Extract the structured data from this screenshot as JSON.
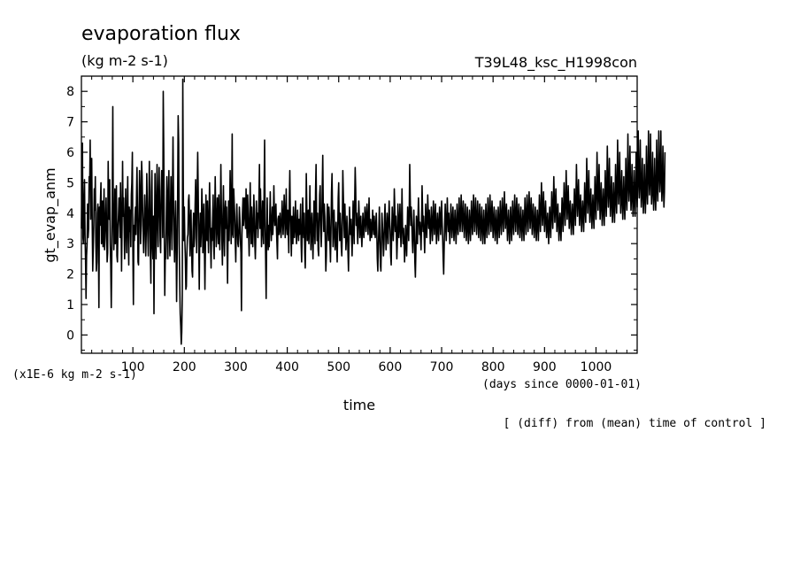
{
  "chart_data": {
    "type": "line",
    "title": "evaporation flux",
    "subtitle": "(kg m-2 s-1)",
    "run_label": "T39L48_ksc_H1998con",
    "ylabel": "gt_evap_anm",
    "xlabel": "time",
    "y_unit_note": "(x1E-6 kg m-2 s-1)",
    "x_unit_note": "(days since 0000-01-01)",
    "footnote": "[ (diff) from (mean) time of control ]",
    "xlim": [
      0,
      1080
    ],
    "ylim": [
      -0.6,
      8.5
    ],
    "x_ticks": [
      100,
      200,
      300,
      400,
      500,
      600,
      700,
      800,
      900,
      1000
    ],
    "x_tick_labels": [
      "100",
      "200",
      "300",
      "400",
      "500",
      "600",
      "700",
      "800",
      "900",
      "1000"
    ],
    "y_ticks": [
      0,
      1,
      2,
      3,
      4,
      5,
      6,
      7,
      8
    ],
    "y_tick_labels": [
      "0",
      "1",
      "2",
      "3",
      "4",
      "5",
      "6",
      "7",
      "8"
    ],
    "grid": false,
    "line_color": "#000000",
    "series": [
      {
        "x_start": 0,
        "x_step": 1,
        "values": [
          3.5,
          5.0,
          6.3,
          3.2,
          3.0,
          4.4,
          5.1,
          3.3,
          2.5,
          1.2,
          2.6,
          3.0,
          4.3,
          3.2,
          3.5,
          5.2,
          4.8,
          6.4,
          3.8,
          4.9,
          5.8,
          3.7,
          2.1,
          2.8,
          3.6,
          4.8,
          4.1,
          5.2,
          3.1,
          2.1,
          2.4,
          4.0,
          4.3,
          3.1,
          0.9,
          4.2,
          3.6,
          4.4,
          5.0,
          3.0,
          3.4,
          4.4,
          2.9,
          3.7,
          4.8,
          2.8,
          3.2,
          3.9,
          4.5,
          3.5,
          2.4,
          2.7,
          5.7,
          4.0,
          3.8,
          5.1,
          3.0,
          2.3,
          0.9,
          2.5,
          4.6,
          7.5,
          3.9,
          2.8,
          3.4,
          4.8,
          3.0,
          3.4,
          4.9,
          2.6,
          2.4,
          3.5,
          3.9,
          4.5,
          4.2,
          3.2,
          5.0,
          3.9,
          2.1,
          3.6,
          5.7,
          3.9,
          4.5,
          3.6,
          2.5,
          3.5,
          4.8,
          3.6,
          2.7,
          4.1,
          5.2,
          3.4,
          2.3,
          4.2,
          3.4,
          4.1,
          2.9,
          4.6,
          5.0,
          6.0,
          2.8,
          1.0,
          3.6,
          3.1,
          3.8,
          4.2,
          3.3,
          4.5,
          5.5,
          4.0,
          2.4,
          2.3,
          4.0,
          5.4,
          4.8,
          3.0,
          3.6,
          5.7,
          5.2,
          4.1,
          3.3,
          2.7,
          3.6,
          4.6,
          3.9,
          2.6,
          3.4,
          5.3,
          4.2,
          3.3,
          2.6,
          4.3,
          5.7,
          4.1,
          2.7,
          1.7,
          4.7,
          5.4,
          2.9,
          2.5,
          3.9,
          0.7,
          3.3,
          5.3,
          3.6,
          2.5,
          4.4,
          5.6,
          3.7,
          2.9,
          4.6,
          5.5,
          4.3,
          3.1,
          2.7,
          4.7,
          5.4,
          5.1,
          3.2,
          8.0,
          6.1,
          3.4,
          1.3,
          2.6,
          2.5,
          3.8,
          5.2,
          4.0,
          2.5,
          4.6,
          5.4,
          3.4,
          2.6,
          4.0,
          5.2,
          3.9,
          2.8,
          4.7,
          6.5,
          4.5,
          3.3,
          2.4,
          3.5,
          4.4,
          3.0,
          1.1,
          2.6,
          4.5,
          7.2,
          6.3,
          3.0,
          1.8,
          0.7,
          0.3,
          -0.3,
          0.1,
          1.3,
          8.4,
          4.8,
          3.1,
          4.2,
          3.1,
          2.5,
          1.5,
          1.6,
          2.7,
          3.2,
          3.3,
          4.4,
          4.6,
          3.9,
          2.6,
          3.5,
          4.1,
          2.9,
          2.1,
          1.9,
          3.4,
          4.0,
          2.9,
          3.2,
          4.3,
          5.1,
          3.8,
          2.7,
          4.6,
          6.0,
          4.7,
          3.1,
          1.5,
          3.3,
          4.0,
          2.9,
          3.5,
          4.8,
          4.1,
          2.7,
          3.6,
          4.3,
          2.8,
          1.5,
          2.9,
          4.6,
          3.6,
          3.1,
          4.4,
          3.5,
          2.7,
          3.9,
          5.0,
          4.1,
          3.0,
          2.2,
          3.5,
          3.1,
          3.8,
          4.6,
          3.0,
          2.5,
          3.9,
          5.2,
          4.0,
          2.9,
          3.4,
          4.5,
          3.8,
          3.0,
          4.6,
          3.5,
          2.8,
          4.0,
          5.6,
          4.2,
          3.1,
          2.3,
          3.8,
          4.9,
          3.3,
          2.6,
          4.1,
          4.4,
          3.5,
          4.2,
          2.9,
          1.7,
          3.3,
          4.4,
          3.1,
          4.0,
          5.4,
          4.2,
          3.0,
          4.5,
          6.6,
          3.3,
          3.2,
          4.8,
          4.3,
          3.9,
          3.0,
          2.4,
          3.5,
          4.3,
          3.6,
          3.0,
          2.9,
          3.4,
          4.2,
          3.8,
          3.1,
          2.7,
          0.8,
          3.3,
          4.0,
          4.5,
          3.6,
          4.1,
          4.5,
          3.9,
          3.5,
          4.8,
          3.8,
          3.2,
          4.6,
          4.0,
          3.3,
          2.6,
          3.8,
          5.0,
          3.7,
          3.0,
          4.2,
          3.5,
          2.9,
          3.5,
          4.6,
          4.1,
          3.0,
          2.5,
          3.3,
          4.4,
          3.5,
          4.0,
          3.2,
          3.8,
          4.5,
          5.6,
          3.5,
          4.8,
          4.0,
          2.9,
          3.4,
          4.4,
          3.6,
          3.0,
          4.7,
          6.4,
          3.8,
          2.5,
          1.2,
          3.1,
          4.5,
          3.4,
          2.8,
          3.6,
          2.9,
          3.9,
          4.7,
          3.6,
          3.1,
          3.7,
          4.2,
          3.3,
          3.8,
          4.9,
          4.0,
          3.6,
          4.1,
          4.3,
          3.5,
          3.0,
          2.5,
          3.8,
          3.9,
          3.3,
          3.5,
          4.0,
          3.5,
          3.2,
          3.7,
          4.4,
          3.9,
          3.3,
          3.8,
          4.6,
          4.1,
          3.2,
          3.6,
          4.8,
          3.7,
          3.3,
          4.1,
          3.4,
          2.7,
          4.4,
          5.4,
          4.0,
          3.4,
          2.6,
          3.9,
          3.6,
          3.0,
          4.2,
          3.7,
          3.2,
          3.5,
          4.4,
          3.6,
          3.0,
          3.4,
          4.1,
          3.5,
          3.1,
          3.8,
          3.3,
          3.7,
          4.3,
          3.0,
          2.4,
          3.3,
          4.5,
          3.8,
          3.2,
          4.0,
          2.7,
          2.2,
          3.3,
          5.3,
          4.2,
          3.1,
          3.8,
          4.1,
          3.0,
          3.6,
          4.9,
          3.7,
          2.8,
          3.5,
          4.0,
          3.2,
          2.5,
          3.4,
          4.4,
          3.6,
          3.0,
          4.7,
          5.6,
          3.9,
          3.1,
          4.0,
          2.8,
          2.6,
          3.7,
          4.6,
          4.9,
          3.6,
          2.9,
          3.5,
          4.8,
          5.9,
          4.2,
          3.4,
          4.3,
          3.9,
          3.0,
          2.1,
          2.6,
          3.7,
          4.3,
          3.6,
          3.1,
          4.2,
          3.8,
          3.0,
          2.4,
          3.4,
          4.7,
          5.3,
          4.0,
          2.9,
          3.6,
          4.1,
          3.3,
          2.8,
          3.2,
          3.7,
          3.0,
          2.4,
          3.3,
          4.5,
          5.0,
          3.7,
          3.1,
          4.0,
          3.6,
          2.9,
          2.6,
          3.5,
          5.4,
          4.6,
          3.8,
          3.2,
          4.3,
          3.6,
          2.8,
          3.2,
          3.9,
          3.4,
          2.7,
          2.1,
          3.1,
          4.2,
          3.6,
          3.3,
          3.8,
          3.2,
          2.6,
          3.4,
          4.4,
          3.7,
          3.0,
          4.3,
          5.5,
          4.8,
          3.6,
          4.0,
          3.5,
          3.0,
          3.7,
          4.4,
          3.9,
          3.2,
          3.6,
          3.9,
          3.3,
          2.9,
          3.4,
          4.0,
          3.5,
          3.2,
          3.7,
          4.2,
          3.8,
          3.4,
          3.9,
          4.3,
          3.7,
          3.3,
          3.9,
          4.5,
          3.6,
          3.1,
          3.8,
          3.6,
          3.2,
          3.5,
          4.1,
          3.7,
          3.3,
          3.9,
          3.5,
          3.2,
          3.6,
          4.0,
          3.4,
          2.5,
          2.1,
          2.9,
          3.5,
          4.2,
          3.2,
          2.3,
          2.1,
          3.0,
          4.0,
          3.6,
          3.2,
          2.6,
          3.0,
          3.8,
          4.3,
          3.5,
          2.8,
          3.3,
          4.0,
          3.6,
          3.0,
          3.7,
          4.4,
          3.8,
          3.4,
          2.6,
          2.3,
          3.4,
          4.2,
          3.7,
          3.1,
          3.6,
          4.8,
          4.2,
          3.4,
          3.9,
          3.3,
          2.5,
          3.1,
          4.3,
          3.7,
          3.2,
          3.7,
          4.3,
          3.5,
          2.9,
          3.6,
          4.8,
          3.6,
          3.0,
          3.5,
          3.1,
          2.4,
          2.9,
          3.6,
          3.2,
          2.6,
          3.4,
          4.2,
          3.7,
          3.1,
          4.0,
          5.6,
          4.5,
          3.6,
          4.2,
          3.7,
          3.1,
          2.7,
          3.5,
          4.1,
          3.4,
          2.4,
          1.9,
          2.8,
          3.9,
          3.4,
          3.0,
          3.8,
          4.5,
          3.9,
          3.3,
          3.7,
          3.2,
          2.8,
          3.6,
          4.9,
          4.1,
          3.4,
          3.9,
          3.3,
          2.7,
          3.4,
          4.3,
          3.8,
          3.2,
          3.7,
          4.6,
          4.0,
          3.5,
          4.1,
          3.6,
          3.0,
          3.6,
          4.2,
          3.7,
          3.1,
          3.6,
          4.4,
          3.9,
          3.3,
          3.8,
          4.3,
          3.6,
          3.0,
          3.5,
          4.0,
          3.5,
          3.1,
          3.7,
          4.2,
          3.8,
          3.3,
          3.9,
          4.4,
          3.7,
          3.2,
          2.5,
          2.0,
          2.9,
          3.7,
          4.3,
          3.6,
          3.1,
          3.8,
          4.5,
          3.9,
          3.4,
          4.0,
          3.5,
          3.0,
          3.6,
          4.3,
          3.8,
          3.2,
          3.7,
          4.2,
          3.6,
          3.1,
          3.6,
          4.1,
          3.5,
          3.0,
          3.6,
          4.3,
          3.7,
          3.3,
          3.8,
          4.5,
          3.9,
          3.4,
          3.9,
          4.6,
          4.0,
          3.4,
          3.9,
          4.4,
          3.8,
          3.2,
          3.7,
          4.3,
          3.7,
          3.1,
          3.6,
          4.2,
          3.6,
          3.0,
          3.5,
          4.1,
          3.6,
          3.1,
          3.7,
          4.4,
          3.8,
          3.3,
          3.9,
          4.6,
          4.0,
          3.4,
          3.9,
          4.5,
          3.9,
          3.3,
          3.8,
          4.4,
          3.8,
          3.2,
          3.7,
          4.3,
          3.7,
          3.1,
          3.6,
          4.2,
          3.6,
          3.0,
          3.5,
          4.1,
          3.5,
          3.0,
          3.6,
          4.3,
          3.7,
          3.2,
          3.8,
          4.5,
          3.9,
          3.3,
          3.9,
          4.6,
          4.0,
          3.4,
          3.9,
          4.4,
          3.8,
          3.2,
          3.7,
          4.2,
          3.6,
          3.1,
          3.6,
          4.1,
          3.5,
          3.0,
          3.6,
          4.2,
          3.7,
          3.2,
          3.8,
          4.4,
          3.8,
          3.3,
          3.9,
          4.5,
          3.9,
          3.4,
          4.0,
          4.7,
          4.1,
          3.5,
          3.9,
          4.3,
          3.7,
          3.1,
          3.6,
          4.1,
          3.5,
          3.0,
          3.6,
          4.2,
          3.6,
          3.1,
          3.7,
          4.4,
          3.8,
          3.3,
          3.9,
          4.6,
          4.0,
          3.4,
          3.9,
          4.5,
          3.9,
          3.3,
          3.8,
          4.3,
          3.7,
          3.2,
          3.7,
          4.2,
          3.6,
          3.1,
          3.6,
          4.1,
          3.6,
          3.1,
          3.8,
          4.5,
          3.9,
          3.3,
          3.9,
          4.6,
          4.0,
          3.4,
          4.0,
          4.7,
          4.1,
          3.5,
          4.0,
          4.5,
          3.9,
          3.3,
          3.8,
          4.3,
          3.7,
          3.2,
          3.7,
          4.2,
          3.6,
          3.1,
          3.6,
          4.1,
          3.6,
          3.1,
          3.8,
          4.6,
          4.0,
          3.4,
          4.1,
          5.0,
          4.3,
          3.6,
          4.1,
          4.7,
          4.0,
          3.4,
          3.9,
          4.4,
          3.8,
          3.2,
          3.6,
          4.0,
          3.5,
          3.0,
          3.6,
          4.2,
          3.7,
          3.2,
          3.9,
          4.7,
          4.1,
          3.5,
          4.2,
          5.2,
          4.4,
          3.7,
          4.2,
          4.8,
          4.1,
          3.4,
          3.9,
          4.3,
          3.7,
          3.1,
          3.6,
          4.0,
          3.5,
          3.1,
          3.8,
          4.5,
          4.0,
          3.4,
          4.2,
          5.0,
          4.3,
          3.6,
          4.3,
          5.4,
          4.6,
          3.8,
          4.3,
          4.9,
          4.2,
          3.5,
          4.0,
          4.4,
          3.8,
          3.3,
          3.8,
          4.3,
          3.8,
          3.3,
          4.0,
          4.8,
          4.2,
          3.6,
          4.4,
          5.6,
          4.7,
          3.9,
          4.5,
          5.1,
          4.3,
          3.6,
          4.1,
          4.6,
          4.0,
          3.4,
          3.9,
          4.4,
          3.9,
          3.4,
          4.1,
          5.0,
          4.3,
          3.7,
          4.5,
          5.8,
          4.8,
          4.0,
          4.6,
          5.4,
          4.5,
          3.7,
          4.2,
          4.8,
          4.1,
          3.5,
          4.0,
          4.6,
          4.0,
          3.5,
          4.2,
          5.2,
          4.5,
          3.8,
          4.6,
          6.0,
          5.0,
          4.1,
          4.7,
          5.6,
          4.6,
          3.8,
          4.3,
          5.0,
          4.3,
          3.6,
          4.1,
          4.8,
          4.2,
          3.6,
          4.3,
          5.4,
          4.6,
          3.9,
          4.7,
          6.2,
          5.1,
          4.2,
          4.8,
          5.8,
          4.7,
          3.9,
          4.4,
          5.2,
          4.4,
          3.7,
          4.2,
          5.0,
          4.3,
          3.7,
          4.4,
          5.6,
          4.7,
          4.0,
          4.8,
          6.4,
          5.2,
          4.3,
          4.9,
          6.0,
          4.8,
          4.0,
          4.5,
          5.4,
          4.5,
          3.8,
          4.3,
          5.2,
          4.4,
          3.8,
          4.5,
          5.8,
          4.8,
          4.1,
          4.9,
          6.6,
          5.3,
          4.4,
          5.0,
          6.2,
          4.9,
          4.1,
          4.6,
          5.6,
          4.6,
          3.9,
          4.4,
          5.4,
          4.5,
          3.9,
          4.6,
          6.0,
          4.9,
          4.2,
          5.0,
          6.7,
          5.4,
          4.5,
          5.1,
          6.4,
          5.0,
          4.2,
          4.7,
          5.8,
          4.7,
          4.0,
          4.5,
          5.6,
          4.6,
          4.0,
          4.7,
          6.2,
          5.0,
          4.3,
          5.1,
          6.7,
          5.5,
          4.6,
          5.2,
          6.6,
          5.1,
          4.3,
          4.8,
          6.0,
          4.8,
          4.1,
          4.6,
          5.8,
          4.7,
          4.1,
          4.8,
          6.4,
          5.1,
          4.4,
          5.2,
          6.7,
          5.6,
          4.7,
          5.3,
          6.7,
          5.2,
          4.4,
          4.9,
          6.2,
          4.9,
          4.2,
          4.7,
          6.0
        ]
      }
    ]
  }
}
